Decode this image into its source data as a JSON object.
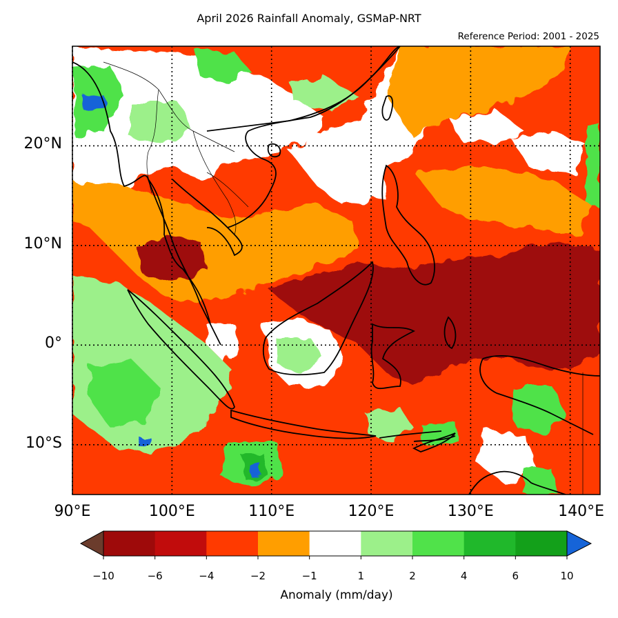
{
  "title": "April 2026 Rainfall Anomaly, GSMaP-NRT",
  "subtitle": "Reference Period: 2001 - 2025",
  "map": {
    "lon_range": [
      90,
      143
    ],
    "lat_range": [
      -15,
      30
    ],
    "lon_ticks": [
      {
        "value": 90,
        "label": "90°E"
      },
      {
        "value": 100,
        "label": "100°E"
      },
      {
        "value": 110,
        "label": "110°E"
      },
      {
        "value": 120,
        "label": "120°E"
      },
      {
        "value": 130,
        "label": "130°E"
      },
      {
        "value": 140,
        "label": "140°E"
      }
    ],
    "lat_ticks": [
      {
        "value": 20,
        "label": "20°N"
      },
      {
        "value": 10,
        "label": "10°N"
      },
      {
        "value": 0,
        "label": "0°"
      },
      {
        "value": -10,
        "label": "10°S"
      }
    ],
    "gridlines": "dotted",
    "projection": "PlateCarree"
  },
  "colorbar": {
    "label": "Anomaly (mm/day)",
    "ticks": [
      "−10",
      "−6",
      "−4",
      "−2",
      "−1",
      "1",
      "2",
      "4",
      "6",
      "10"
    ],
    "under_color": "#6b3c2c",
    "colors": [
      "#9e0a0a",
      "#c10c0c",
      "#ff3a00",
      "#ff9e00",
      "#ffffff",
      "#9cf08a",
      "#50e24a",
      "#20b82b",
      "#13a01a"
    ],
    "over_color": "#1664d8",
    "extend": "both"
  }
}
